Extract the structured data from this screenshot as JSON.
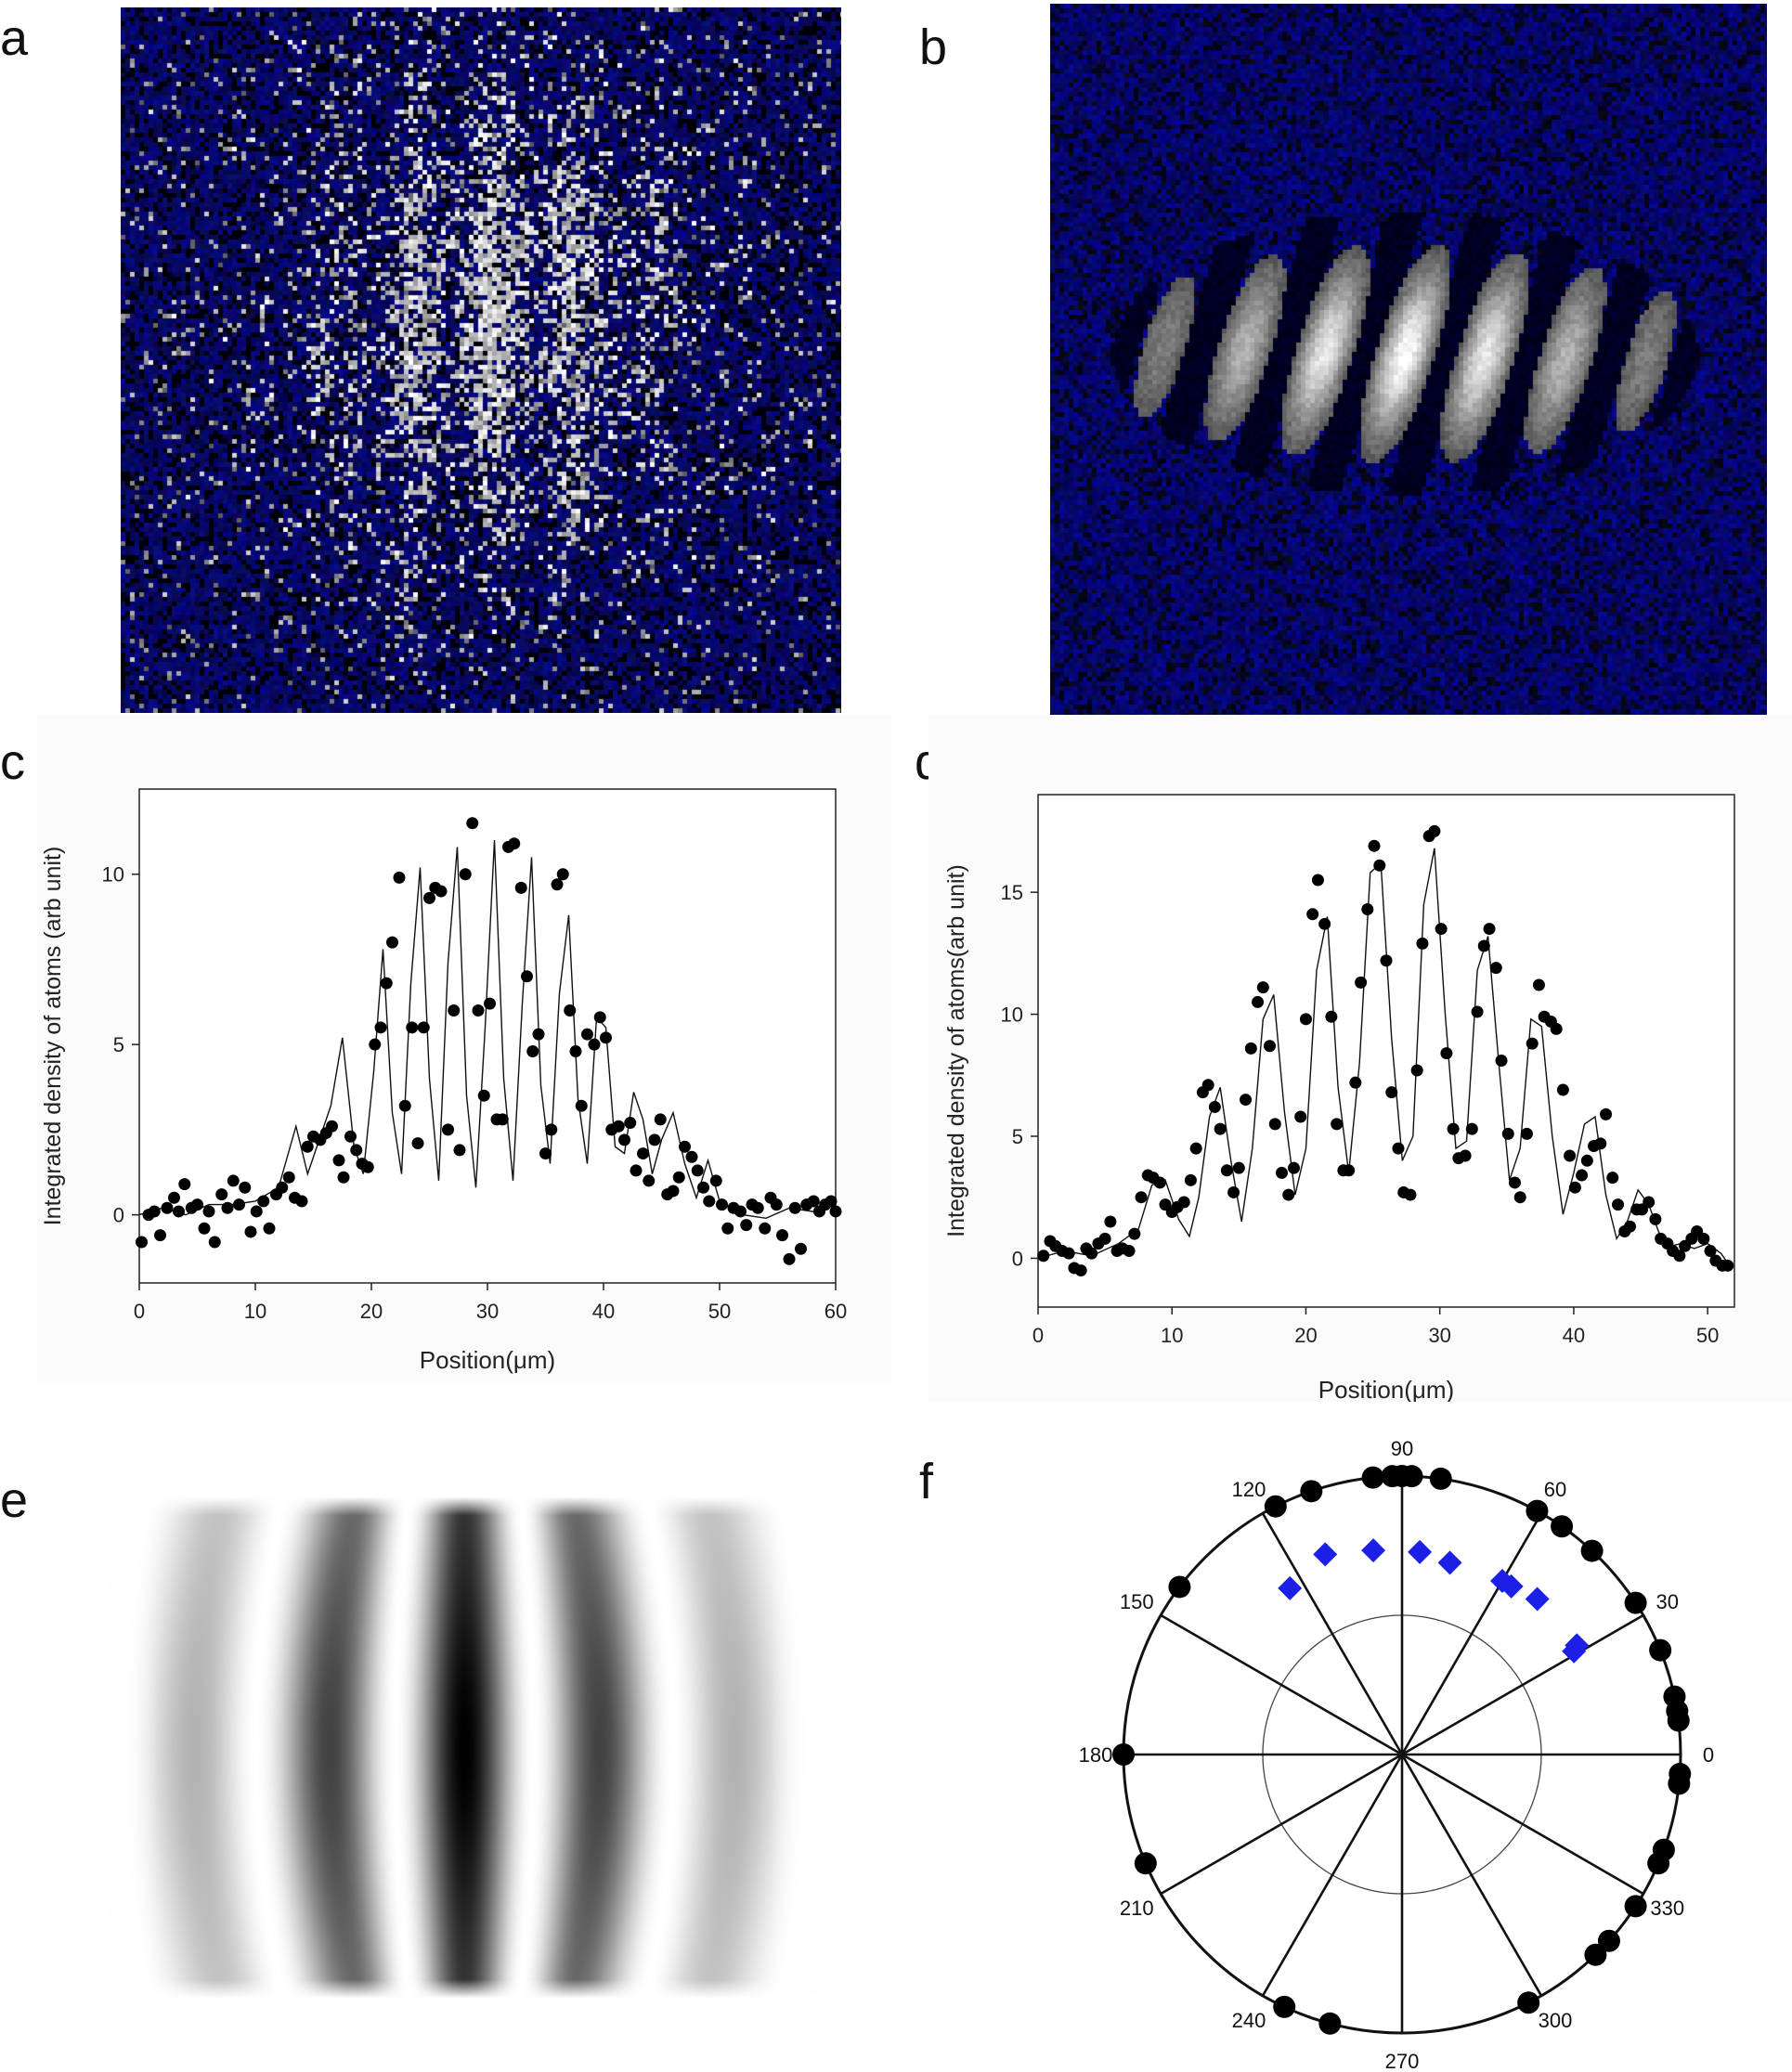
{
  "panels": {
    "a": {
      "label": "a"
    },
    "b": {
      "label": "b"
    },
    "c": {
      "label": "c"
    },
    "d": {
      "label": "d"
    },
    "e": {
      "label": "e"
    },
    "f": {
      "label": "f"
    }
  },
  "colors": {
    "background_blue": "#0b1a8c",
    "fringe_white": "#e8e8e8",
    "data_point": "#000000",
    "polar_diamond": "#1c20e6"
  },
  "chart_data": [
    {
      "panel": "c",
      "type": "scatter",
      "xlabel": "Position(μm)",
      "ylabel": "Integrated density of atoms (arb unit)",
      "xlim": [
        0,
        60
      ],
      "ylim": [
        -2,
        12.5
      ],
      "xticks": [
        0,
        10,
        20,
        30,
        40,
        50,
        60
      ],
      "yticks": [
        0,
        5,
        10
      ],
      "series": [
        {
          "style": "points",
          "x": [
            0.2,
            0.8,
            1.3,
            1.8,
            2.4,
            3.0,
            3.4,
            3.9,
            4.5,
            5.0,
            5.6,
            6.0,
            6.5,
            7.1,
            7.6,
            8.1,
            8.6,
            9.1,
            9.6,
            10.1,
            10.7,
            11.2,
            11.8,
            12.3,
            12.9,
            13.4,
            14.0,
            14.5,
            15.0,
            15.6,
            16.1,
            16.6,
            17.2,
            17.6,
            18.2,
            18.7,
            19.2,
            19.7,
            20.3,
            20.8,
            21.3,
            21.8,
            22.4,
            22.9,
            23.5,
            24.0,
            24.5,
            25.0,
            25.5,
            26.0,
            26.6,
            27.1,
            27.6,
            28.1,
            28.7,
            29.2,
            29.7,
            30.2,
            30.8,
            31.3,
            31.8,
            32.3,
            32.9,
            33.4,
            33.9,
            34.4,
            35.0,
            35.5,
            36.0,
            36.5,
            37.1,
            37.6,
            38.1,
            38.6,
            39.2,
            39.7,
            40.2,
            40.7,
            41.3,
            41.8,
            42.3,
            42.8,
            43.4,
            43.9,
            44.4,
            44.9,
            45.5,
            46.0,
            46.5,
            47.0,
            47.6,
            48.1,
            48.6,
            49.1,
            49.7,
            50.2,
            50.7,
            51.2,
            51.8,
            52.3,
            52.8,
            53.3,
            53.9,
            54.4,
            54.9,
            55.4,
            56.0,
            56.5,
            57.0,
            57.5,
            58.1,
            58.6,
            59.1,
            59.6,
            60.0
          ],
          "y": [
            -0.8,
            0.0,
            0.1,
            -0.6,
            0.2,
            0.5,
            0.1,
            0.9,
            0.2,
            0.3,
            -0.4,
            0.1,
            -0.8,
            0.6,
            0.2,
            1.0,
            0.3,
            0.8,
            -0.5,
            0.1,
            0.4,
            -0.4,
            0.6,
            0.8,
            1.1,
            0.5,
            0.4,
            2.0,
            2.3,
            2.2,
            2.4,
            2.6,
            1.6,
            1.1,
            2.3,
            1.9,
            1.5,
            1.4,
            5.0,
            5.5,
            6.8,
            8.0,
            9.9,
            3.2,
            5.5,
            2.1,
            5.5,
            9.3,
            9.6,
            9.5,
            2.5,
            6.0,
            1.9,
            10.0,
            11.5,
            6.0,
            3.5,
            6.2,
            2.8,
            2.8,
            10.8,
            10.9,
            9.6,
            7.0,
            4.8,
            5.3,
            1.8,
            2.5,
            9.7,
            10.0,
            6.0,
            4.8,
            3.2,
            5.3,
            5.0,
            5.8,
            5.2,
            2.5,
            2.6,
            2.2,
            2.7,
            1.3,
            1.8,
            1.0,
            2.2,
            2.8,
            0.6,
            0.7,
            1.1,
            2.0,
            1.7,
            1.3,
            0.8,
            0.4,
            1.0,
            0.3,
            -0.4,
            0.2,
            0.1,
            -0.3,
            0.3,
            0.2,
            -0.4,
            0.5,
            0.3,
            -0.6,
            -1.3,
            0.2,
            -1.0,
            0.3,
            0.4,
            0.1,
            0.3,
            0.4,
            0.1
          ]
        },
        {
          "style": "line",
          "x": [
            0,
            2,
            4,
            6,
            8,
            10,
            12,
            13.5,
            14.5,
            15.5,
            16.5,
            17.5,
            18.5,
            19.3,
            20.2,
            21.0,
            21.8,
            22.6,
            23.4,
            24.2,
            25.0,
            25.8,
            26.6,
            27.4,
            28.2,
            29.0,
            29.8,
            30.6,
            31.4,
            32.2,
            33.0,
            33.8,
            34.6,
            35.4,
            36.2,
            37.0,
            37.8,
            38.6,
            39.4,
            40.2,
            41.0,
            41.8,
            42.6,
            43.4,
            44.2,
            45.0,
            46.0,
            47.0,
            48.0,
            49.0,
            50.0,
            52.0,
            54.0,
            56.0,
            58.0,
            60.0
          ],
          "y": [
            0.0,
            0.2,
            0.0,
            0.3,
            0.3,
            0.4,
            0.8,
            2.6,
            1.2,
            2.2,
            3.2,
            5.2,
            2.0,
            1.2,
            4.2,
            7.8,
            3.0,
            1.2,
            6.8,
            10.2,
            4.0,
            1.0,
            7.4,
            10.8,
            3.5,
            0.8,
            5.5,
            11.0,
            4.0,
            1.0,
            6.2,
            10.5,
            3.8,
            1.5,
            6.5,
            8.8,
            3.4,
            1.5,
            5.8,
            5.5,
            2.0,
            1.8,
            3.6,
            2.8,
            1.2,
            2.2,
            3.0,
            1.5,
            0.5,
            1.6,
            0.4,
            0.0,
            -0.1,
            0.2,
            0.1,
            0.3
          ]
        }
      ]
    },
    {
      "panel": "d",
      "type": "scatter",
      "xlabel": "Position(μm)",
      "ylabel": "Integrated density of atoms(arb unit)",
      "xlim": [
        0,
        52
      ],
      "ylim": [
        -2,
        19
      ],
      "xticks": [
        0,
        10,
        20,
        30,
        40,
        50
      ],
      "yticks": [
        0,
        5,
        10,
        15
      ],
      "series": [
        {
          "style": "points",
          "x": [
            0.4,
            0.9,
            1.3,
            1.8,
            2.3,
            2.7,
            3.2,
            3.6,
            4.0,
            4.5,
            5.0,
            5.4,
            5.9,
            6.3,
            6.8,
            7.2,
            7.7,
            8.2,
            8.6,
            9.1,
            9.5,
            10.0,
            10.4,
            10.9,
            11.4,
            11.8,
            12.3,
            12.7,
            13.2,
            13.6,
            14.1,
            14.6,
            15.0,
            15.5,
            15.9,
            16.4,
            16.8,
            17.3,
            17.7,
            18.2,
            18.7,
            19.1,
            19.6,
            20.0,
            20.5,
            20.9,
            21.4,
            21.9,
            22.3,
            22.8,
            23.2,
            23.7,
            24.1,
            24.6,
            25.1,
            25.5,
            26.0,
            26.4,
            26.9,
            27.3,
            27.8,
            28.3,
            28.7,
            29.2,
            29.6,
            30.1,
            30.5,
            31.0,
            31.4,
            31.9,
            32.4,
            32.8,
            33.3,
            33.7,
            34.2,
            34.6,
            35.1,
            35.6,
            36.0,
            36.5,
            36.9,
            37.4,
            37.8,
            38.3,
            38.7,
            39.2,
            39.7,
            40.1,
            40.6,
            41.0,
            41.5,
            42.0,
            42.4,
            42.9,
            43.3,
            43.8,
            44.2,
            44.7,
            45.1,
            45.6,
            46.1,
            46.5,
            47.0,
            47.4,
            47.9,
            48.3,
            48.8,
            49.2,
            49.7,
            50.2,
            50.6,
            51.1,
            51.5
          ],
          "y": [
            0.1,
            0.7,
            0.5,
            0.3,
            0.2,
            -0.4,
            -0.5,
            0.4,
            0.2,
            0.6,
            0.8,
            1.5,
            0.3,
            0.4,
            0.3,
            1.0,
            2.5,
            3.4,
            3.3,
            3.1,
            2.2,
            1.9,
            2.1,
            2.3,
            3.2,
            4.5,
            6.8,
            7.1,
            6.2,
            5.3,
            3.6,
            2.7,
            3.7,
            6.5,
            8.6,
            10.5,
            11.1,
            8.7,
            5.5,
            3.5,
            2.6,
            3.7,
            5.8,
            9.8,
            14.1,
            15.5,
            13.7,
            9.9,
            5.5,
            3.6,
            3.6,
            7.2,
            11.3,
            14.3,
            16.9,
            16.1,
            12.2,
            6.8,
            4.5,
            2.7,
            2.6,
            7.7,
            12.9,
            17.3,
            17.5,
            13.5,
            8.4,
            5.3,
            4.1,
            4.2,
            5.3,
            10.1,
            12.8,
            13.5,
            11.9,
            8.1,
            5.1,
            3.1,
            2.5,
            5.1,
            8.8,
            11.2,
            9.9,
            9.7,
            9.4,
            6.9,
            4.2,
            2.9,
            3.4,
            4.0,
            4.6,
            4.7,
            5.9,
            3.3,
            2.2,
            1.1,
            1.3,
            2.0,
            2.0,
            2.3,
            1.6,
            0.8,
            0.6,
            0.3,
            0.1,
            0.5,
            0.8,
            1.1,
            0.8,
            0.3,
            -0.1,
            -0.3,
            -0.3
          ]
        },
        {
          "style": "line",
          "x": [
            0,
            2,
            4,
            6,
            7.5,
            8.5,
            9.5,
            10.5,
            11.3,
            12.0,
            12.8,
            13.6,
            14.4,
            15.2,
            16.0,
            16.8,
            17.6,
            18.4,
            19.2,
            20.0,
            20.8,
            21.6,
            22.4,
            23.2,
            24.0,
            24.8,
            25.6,
            26.4,
            27.2,
            28.0,
            28.8,
            29.6,
            30.4,
            31.2,
            32.0,
            32.8,
            33.6,
            34.4,
            35.2,
            36.0,
            36.8,
            37.6,
            38.4,
            39.2,
            40.0,
            40.8,
            41.6,
            42.4,
            43.2,
            44.0,
            44.8,
            45.6,
            46.4,
            47.2,
            48.0,
            49.0,
            50.0,
            51.0,
            51.5
          ],
          "y": [
            0.0,
            0.3,
            0.1,
            0.6,
            1.2,
            3.0,
            3.2,
            1.6,
            0.9,
            2.5,
            5.8,
            7.0,
            4.0,
            1.5,
            4.5,
            9.8,
            10.8,
            6.0,
            2.6,
            4.5,
            11.8,
            14.0,
            7.0,
            3.5,
            8.0,
            15.8,
            16.2,
            9.0,
            4.0,
            5.0,
            14.5,
            16.8,
            10.0,
            4.5,
            4.8,
            11.8,
            13.2,
            8.0,
            3.2,
            4.5,
            9.8,
            9.5,
            5.0,
            1.8,
            3.5,
            5.5,
            5.8,
            2.6,
            0.8,
            1.5,
            2.8,
            2.2,
            1.0,
            0.5,
            0.6,
            0.4,
            0.6,
            0.2,
            -0.2
          ]
        }
      ]
    },
    {
      "panel": "f",
      "type": "polar",
      "angle_labels": [
        "0",
        "30",
        "60",
        "90",
        "120",
        "150",
        "180",
        "210",
        "240",
        "270",
        "300",
        "330"
      ],
      "rmax": 1.0,
      "inner_circle_r": 0.5,
      "series": [
        {
          "name": "",
          "marker": "circle",
          "r": [
            1.0,
            1.0,
            1.0,
            1.0,
            1.0,
            1.0,
            1.0,
            1.0,
            1.0,
            1.0,
            1.0,
            1.0,
            1.0,
            1.0,
            1.0,
            1.0,
            1.0,
            1.0,
            1.0,
            1.0,
            1.0,
            1.0,
            1.0,
            1.0,
            1.0,
            1.0,
            1.0,
            1.0
          ],
          "theta": [
            7,
            9,
            12,
            22,
            33,
            47,
            55,
            61,
            82,
            88,
            90,
            92,
            96,
            109,
            117,
            143,
            180,
            203,
            245,
            255,
            297,
            314,
            318,
            327,
            337,
            340,
            354,
            356
          ]
        },
        {
          "name": "",
          "marker": "diamond",
          "r": [
            0.72,
            0.74,
            0.74,
            0.72,
            0.72,
            0.71,
            0.73,
            0.74,
            0.77,
            0.72
          ],
          "theta": [
            31,
            32,
            49,
            57,
            60,
            76,
            85,
            98,
            111,
            124
          ]
        }
      ]
    }
  ]
}
